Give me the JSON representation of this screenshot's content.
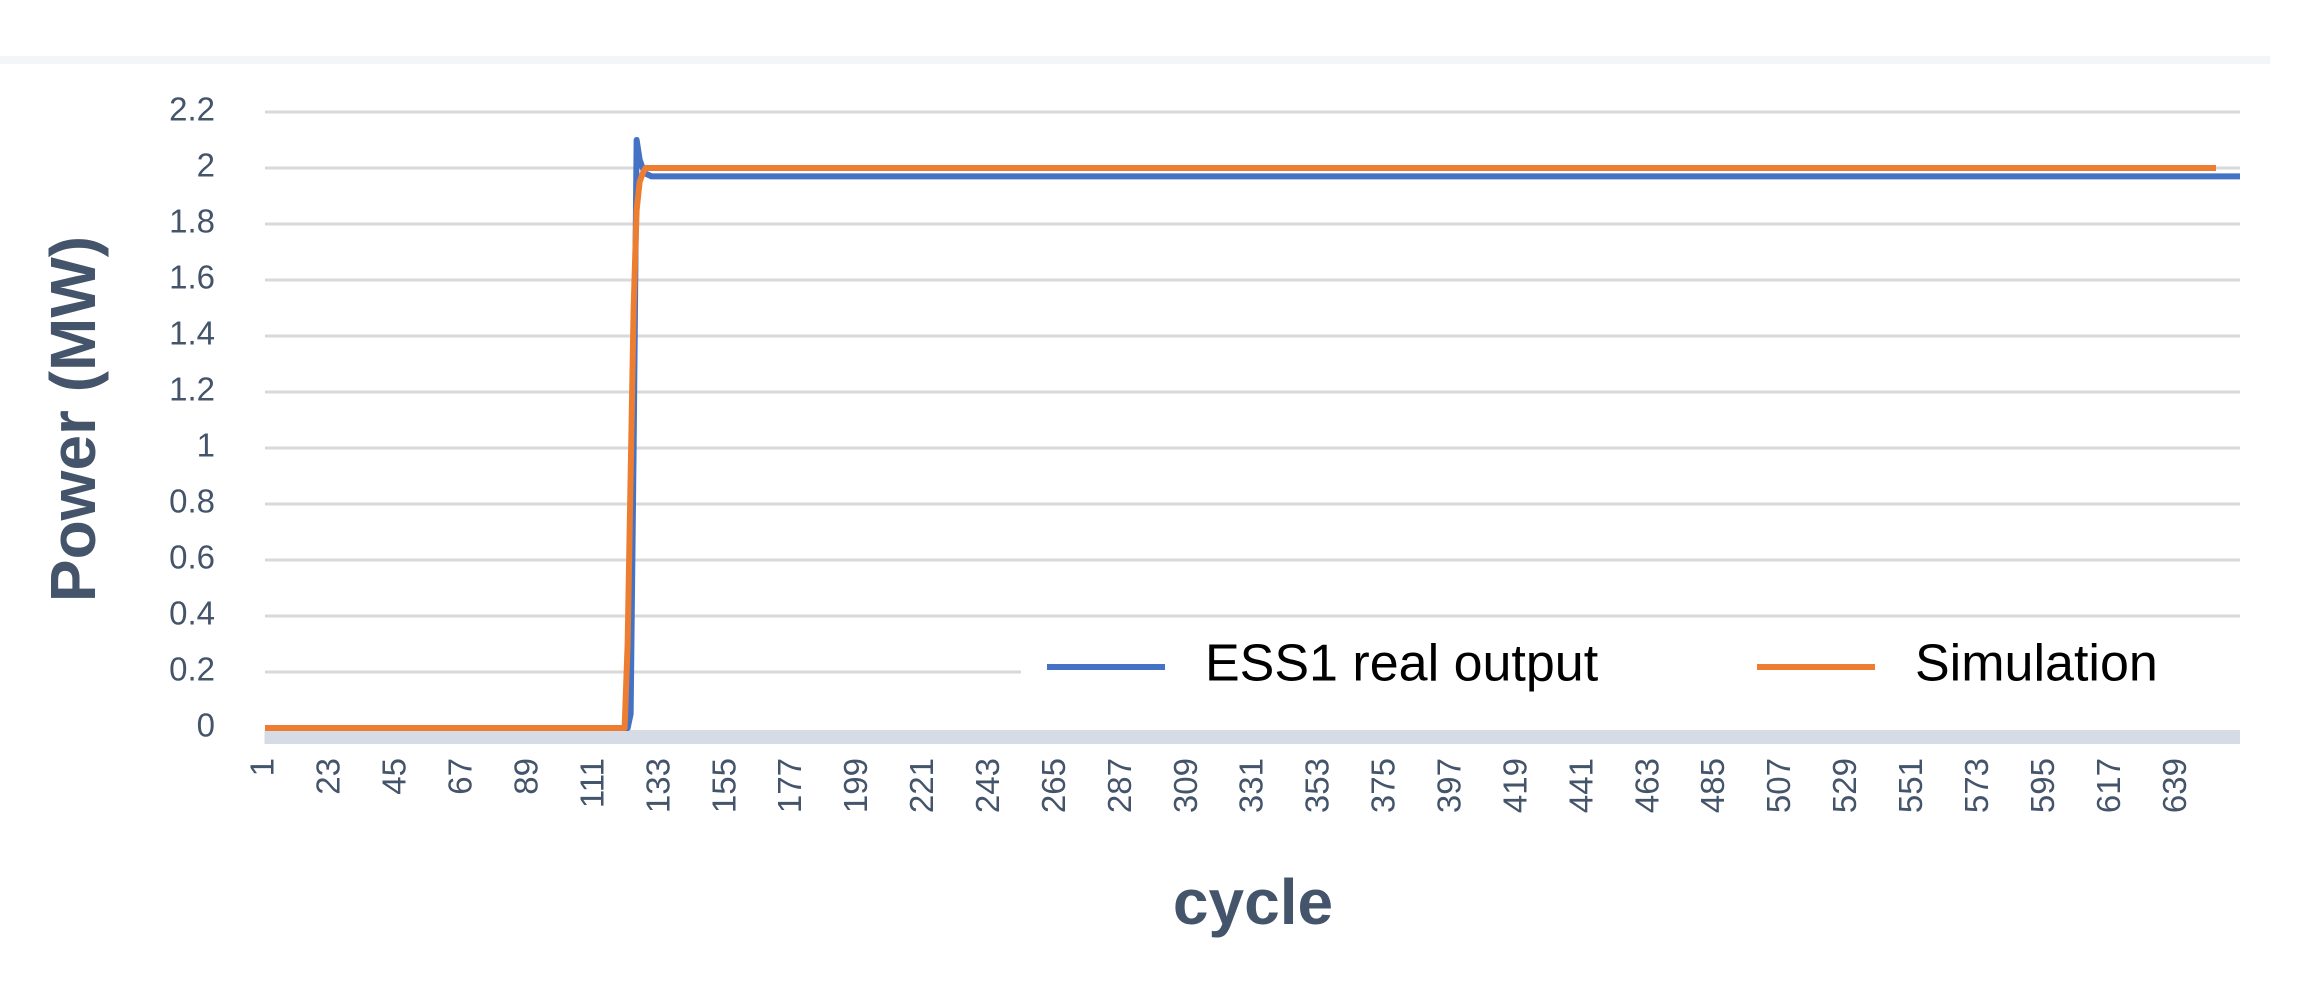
{
  "chart_data": {
    "type": "line",
    "x_label": "cycle",
    "y_label": "Power (MW)",
    "x": [
      1,
      119,
      121,
      122,
      123,
      124,
      125,
      126,
      127,
      128,
      130,
      133,
      652,
      660
    ],
    "series": [
      {
        "name": "ESS1 real output",
        "color": "#4472c4",
        "values": [
          0,
          0,
          0,
          0,
          0.05,
          1.0,
          2.1,
          2.03,
          2.0,
          1.98,
          1.97,
          1.97,
          1.97,
          1.97
        ]
      },
      {
        "name": "Simulation",
        "color": "#ed7d31",
        "values": [
          0,
          0,
          0,
          0.3,
          0.9,
          1.5,
          1.85,
          1.95,
          1.98,
          2.0,
          2.0,
          2.0,
          2.0,
          null
        ]
      }
    ],
    "xlim": [
      1,
      660
    ],
    "xticks": [
      1,
      23,
      45,
      67,
      89,
      111,
      133,
      155,
      177,
      199,
      221,
      243,
      265,
      287,
      309,
      331,
      353,
      375,
      397,
      419,
      441,
      463,
      485,
      507,
      529,
      551,
      573,
      595,
      617,
      639
    ],
    "ylim": [
      0,
      2.2
    ],
    "yticks": [
      0,
      0.2,
      0.4,
      0.6,
      0.8,
      1,
      1.2,
      1.4,
      1.6,
      1.8,
      2,
      2.2
    ],
    "grid": true,
    "legend": "lower right"
  }
}
